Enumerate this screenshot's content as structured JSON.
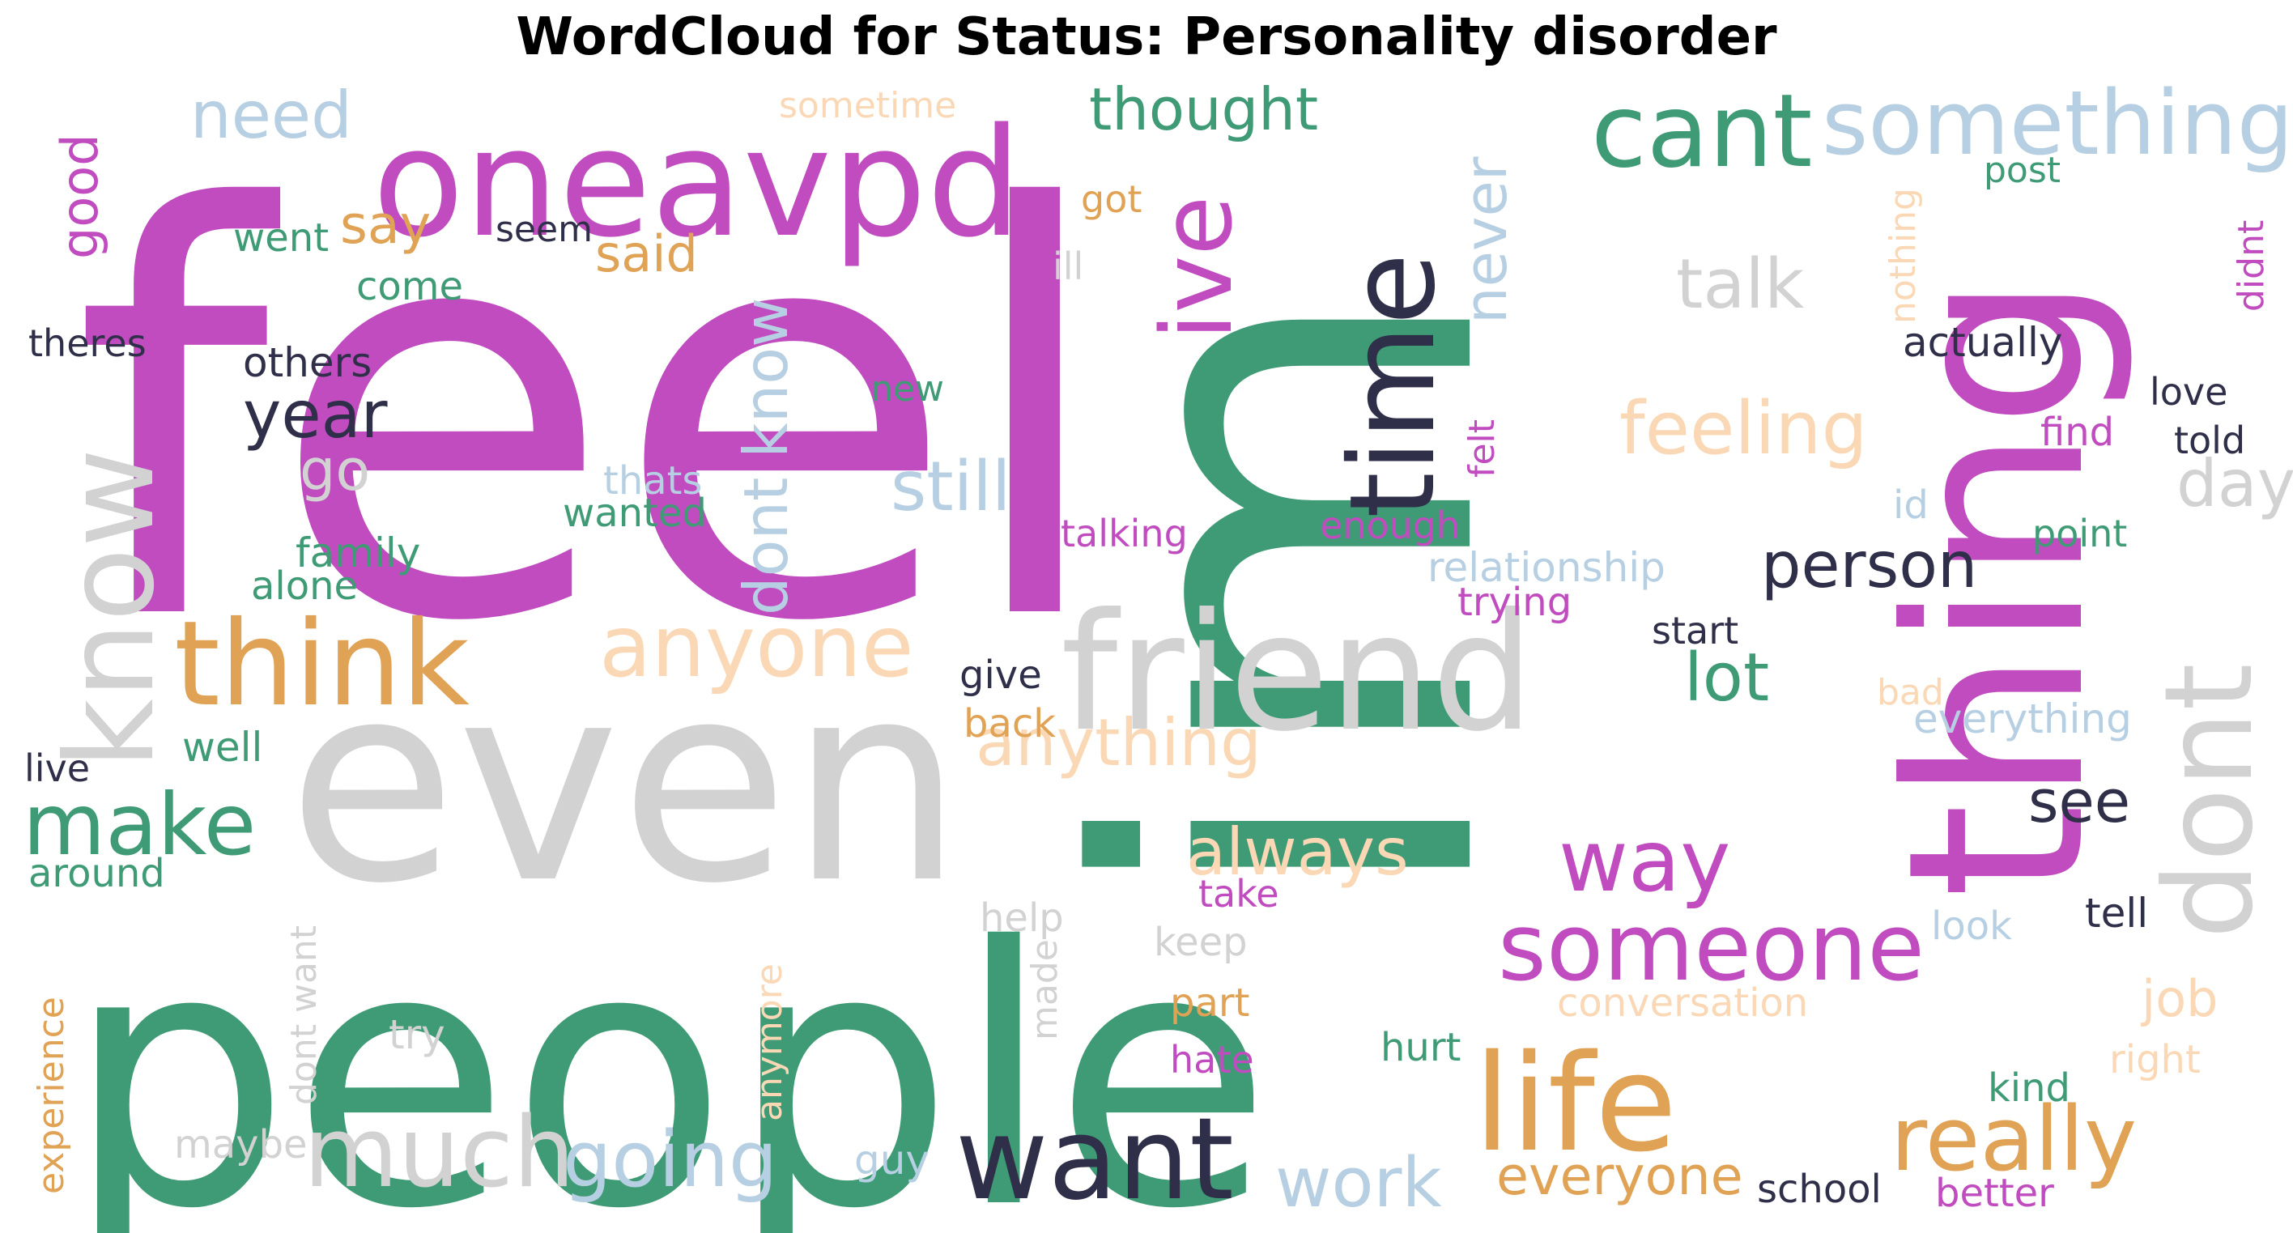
{
  "title": "WordCloud for Status: Personality disorder",
  "palette": {
    "magenta": "#c04cbf",
    "green": "#3f9b75",
    "gray": "#d2d2d2",
    "navy": "#2f2f4a",
    "orange": "#e0a254",
    "peach": "#fbd8b5",
    "lightblue": "#b7cfe2"
  },
  "words": [
    {
      "text": "feel",
      "color": "magenta"
    },
    {
      "text": "im",
      "color": "green"
    },
    {
      "text": "people",
      "color": "green"
    },
    {
      "text": "even",
      "color": "gray"
    },
    {
      "text": "thing",
      "color": "magenta"
    },
    {
      "text": "oneavpd",
      "color": "magenta"
    },
    {
      "text": "friend",
      "color": "gray"
    },
    {
      "text": "know",
      "color": "gray"
    },
    {
      "text": "time",
      "color": "navy"
    },
    {
      "text": "ive",
      "color": "magenta"
    },
    {
      "text": "cant",
      "color": "green"
    },
    {
      "text": "something",
      "color": "lightblue"
    },
    {
      "text": "dont",
      "color": "gray"
    },
    {
      "text": "life",
      "color": "orange"
    },
    {
      "text": "think",
      "color": "orange"
    },
    {
      "text": "want",
      "color": "navy"
    },
    {
      "text": "really",
      "color": "orange"
    },
    {
      "text": "someone",
      "color": "magenta"
    },
    {
      "text": "much",
      "color": "gray"
    },
    {
      "text": "make",
      "color": "green"
    },
    {
      "text": "way",
      "color": "magenta"
    },
    {
      "text": "anyone",
      "color": "peach"
    },
    {
      "text": "going",
      "color": "lightblue"
    },
    {
      "text": "feeling",
      "color": "peach"
    },
    {
      "text": "anything",
      "color": "peach"
    },
    {
      "text": "need",
      "color": "lightblue"
    },
    {
      "text": "thought",
      "color": "green"
    },
    {
      "text": "talk",
      "color": "gray"
    },
    {
      "text": "person",
      "color": "navy"
    },
    {
      "text": "always",
      "color": "peach"
    },
    {
      "text": "still",
      "color": "lightblue"
    },
    {
      "text": "year",
      "color": "navy"
    },
    {
      "text": "dont know",
      "color": "lightblue"
    },
    {
      "text": "work",
      "color": "lightblue"
    },
    {
      "text": "never",
      "color": "lightblue"
    },
    {
      "text": "lot",
      "color": "green"
    },
    {
      "text": "day",
      "color": "gray"
    },
    {
      "text": "everyone",
      "color": "orange"
    },
    {
      "text": "good",
      "color": "magenta"
    },
    {
      "text": "see",
      "color": "navy"
    },
    {
      "text": "say",
      "color": "orange"
    },
    {
      "text": "go",
      "color": "gray"
    },
    {
      "text": "said",
      "color": "orange"
    },
    {
      "text": "job",
      "color": "peach"
    },
    {
      "text": "others",
      "color": "navy"
    },
    {
      "text": "actually",
      "color": "navy"
    },
    {
      "text": "relationship",
      "color": "lightblue"
    },
    {
      "text": "conversation",
      "color": "peach"
    },
    {
      "text": "sometime",
      "color": "peach"
    },
    {
      "text": "went",
      "color": "green"
    },
    {
      "text": "seem",
      "color": "navy"
    },
    {
      "text": "got",
      "color": "orange"
    },
    {
      "text": "post",
      "color": "green"
    },
    {
      "text": "come",
      "color": "green"
    },
    {
      "text": "ill",
      "color": "gray"
    },
    {
      "text": "theres",
      "color": "navy"
    },
    {
      "text": "nothing",
      "color": "peach"
    },
    {
      "text": "didnt",
      "color": "magenta"
    },
    {
      "text": "new",
      "color": "green"
    },
    {
      "text": "love",
      "color": "navy"
    },
    {
      "text": "find",
      "color": "magenta"
    },
    {
      "text": "told",
      "color": "navy"
    },
    {
      "text": "thats",
      "color": "lightblue"
    },
    {
      "text": "felt",
      "color": "magenta"
    },
    {
      "text": "wanted",
      "color": "green"
    },
    {
      "text": "talking",
      "color": "magenta"
    },
    {
      "text": "enough",
      "color": "magenta"
    },
    {
      "text": "id",
      "color": "lightblue"
    },
    {
      "text": "family",
      "color": "green"
    },
    {
      "text": "point",
      "color": "green"
    },
    {
      "text": "alone",
      "color": "green"
    },
    {
      "text": "trying",
      "color": "magenta"
    },
    {
      "text": "start",
      "color": "navy"
    },
    {
      "text": "give",
      "color": "navy"
    },
    {
      "text": "bad",
      "color": "peach"
    },
    {
      "text": "back",
      "color": "orange"
    },
    {
      "text": "everything",
      "color": "lightblue"
    },
    {
      "text": "well",
      "color": "green"
    },
    {
      "text": "live",
      "color": "navy"
    },
    {
      "text": "around",
      "color": "green"
    },
    {
      "text": "take",
      "color": "magenta"
    },
    {
      "text": "help",
      "color": "gray"
    },
    {
      "text": "dont want",
      "color": "gray"
    },
    {
      "text": "look",
      "color": "lightblue"
    },
    {
      "text": "tell",
      "color": "navy"
    },
    {
      "text": "keep",
      "color": "gray"
    },
    {
      "text": "made",
      "color": "gray"
    },
    {
      "text": "part",
      "color": "orange"
    },
    {
      "text": "experience",
      "color": "orange"
    },
    {
      "text": "anymore",
      "color": "peach"
    },
    {
      "text": "try",
      "color": "gray"
    },
    {
      "text": "hurt",
      "color": "green"
    },
    {
      "text": "right",
      "color": "peach"
    },
    {
      "text": "hate",
      "color": "magenta"
    },
    {
      "text": "kind",
      "color": "green"
    },
    {
      "text": "maybe",
      "color": "gray"
    },
    {
      "text": "guy",
      "color": "lightblue"
    },
    {
      "text": "school",
      "color": "navy"
    },
    {
      "text": "better",
      "color": "magenta"
    }
  ]
}
